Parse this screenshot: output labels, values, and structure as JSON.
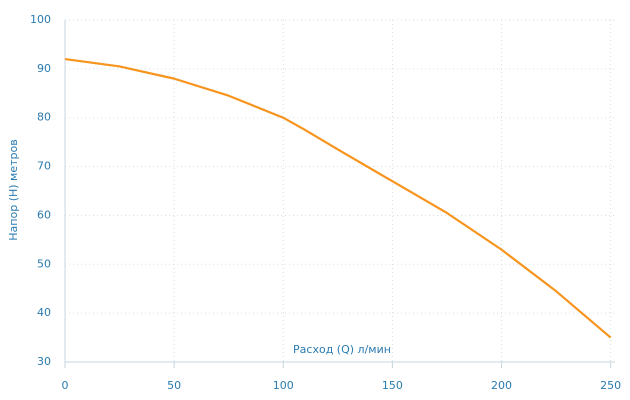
{
  "chart_data": {
    "type": "line",
    "x_label": "Расход (Q) л/мин",
    "y_label": "Напор (H) метров",
    "x": [
      0,
      25,
      50,
      75,
      100,
      110,
      125,
      150,
      175,
      200,
      225,
      250
    ],
    "values": [
      92,
      90.5,
      88,
      84.5,
      80,
      77.5,
      73.5,
      67,
      60.5,
      53,
      44.5,
      35
    ],
    "color": "#f7941d",
    "xlim": [
      0,
      252
    ],
    "ylim": [
      30,
      100
    ],
    "xticks": [
      0,
      50,
      100,
      150,
      200,
      250
    ],
    "yticks": [
      30,
      40,
      50,
      60,
      70,
      80,
      90,
      100
    ],
    "grid": true
  }
}
